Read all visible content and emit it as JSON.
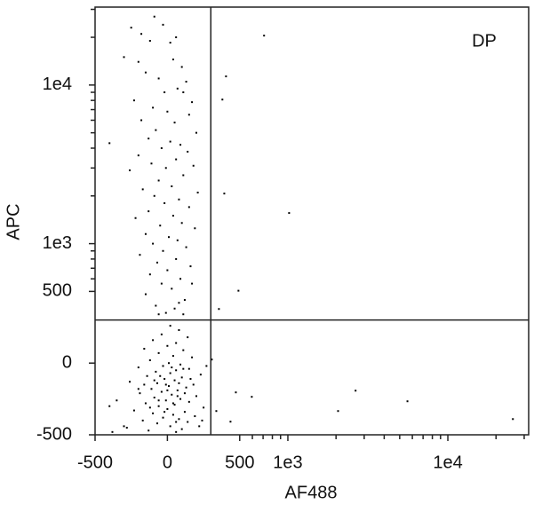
{
  "chart_data": {
    "type": "scatter",
    "x_label": "AF488",
    "y_label": "APC",
    "annotation": "DP",
    "color": "#000000",
    "gates": {
      "x": 300,
      "y": 300
    },
    "xlim": [
      -500,
      32000
    ],
    "ylim": [
      -500,
      31000
    ],
    "xticks": [
      -500,
      0,
      500,
      {
        "value": 1000,
        "label": "1e3"
      },
      {
        "value": 10000,
        "label": "1e4"
      }
    ],
    "yticks": [
      -500,
      0,
      500,
      {
        "value": 1000,
        "label": "1e3"
      },
      {
        "value": 10000,
        "label": "1e4"
      }
    ],
    "xminor_ticks": [
      600,
      700,
      800,
      900,
      2000,
      3000,
      4000,
      5000,
      6000,
      7000,
      8000,
      9000,
      20000,
      30000
    ],
    "yminor_ticks": [
      600,
      700,
      800,
      900,
      2000,
      3000,
      4000,
      5000,
      6000,
      7000,
      8000,
      9000,
      20000,
      30000
    ],
    "x": [
      -90,
      -30,
      -250,
      -180,
      -120,
      20,
      60,
      -300,
      -200,
      40,
      100,
      -150,
      -60,
      130,
      70,
      -20,
      110,
      -230,
      170,
      -100,
      0,
      150,
      -180,
      50,
      -80,
      200,
      -130,
      20,
      90,
      -40,
      -400,
      140,
      -200,
      60,
      -110,
      -10,
      180,
      -260,
      110,
      -60,
      30,
      -170,
      210,
      -90,
      80,
      -20,
      150,
      -130,
      40,
      -220,
      100,
      -50,
      190,
      -150,
      10,
      70,
      -100,
      130,
      -30,
      -190,
      60,
      -70,
      160,
      0,
      -120,
      90,
      -40,
      30,
      -150,
      120,
      -80,
      50,
      -10,
      80,
      170,
      -60,
      110,
      20,
      80,
      -40,
      140,
      -100,
      60,
      0,
      -160,
      110,
      -60,
      40,
      170,
      -120,
      10,
      90,
      -30,
      -200,
      150,
      60,
      -80,
      20,
      230,
      -140,
      100,
      -20,
      50,
      -260,
      -70,
      180,
      10,
      130,
      -110,
      70,
      -40,
      -190,
      30,
      200,
      -90,
      90,
      -10,
      150,
      -150,
      50,
      -60,
      250,
      0,
      -230,
      120,
      -100,
      40,
      190,
      -30,
      80,
      -170,
      140,
      -70,
      20,
      -280,
      100,
      -130,
      -380,
      60,
      -300,
      220,
      -50,
      30,
      -10,
      70,
      -120,
      110,
      -200,
      160,
      -350,
      -400,
      270,
      240,
      -60,
      0,
      40,
      -90,
      120,
      80,
      -20,
      -160,
      60,
      710,
      405,
      380,
      393,
      1018,
      491,
      356,
      307,
      473,
      595,
      2650,
      2060,
      5590,
      25500,
      436,
      338
    ],
    "values": [
      27000,
      24000,
      23000,
      21000,
      19000,
      18500,
      20000,
      15000,
      14000,
      14500,
      13000,
      12000,
      11000,
      10500,
      9500,
      9000,
      9000,
      8000,
      7800,
      7200,
      6800,
      6500,
      6000,
      5800,
      5200,
      5000,
      4600,
      4400,
      4200,
      4000,
      4300,
      3800,
      3600,
      3400,
      3200,
      3000,
      3100,
      2900,
      2700,
      2500,
      2300,
      2200,
      2100,
      2000,
      1900,
      1800,
      1700,
      1600,
      1500,
      1450,
      1350,
      1300,
      1250,
      1150,
      1100,
      1050,
      1000,
      950,
      900,
      850,
      800,
      760,
      720,
      680,
      640,
      600,
      560,
      520,
      480,
      440,
      400,
      380,
      350,
      420,
      560,
      340,
      340,
      260,
      230,
      200,
      180,
      160,
      140,
      120,
      100,
      90,
      70,
      50,
      40,
      20,
      0,
      -10,
      -20,
      -30,
      -40,
      -50,
      -60,
      -70,
      -80,
      -90,
      -100,
      -110,
      -120,
      -130,
      -140,
      -150,
      -160,
      -170,
      -180,
      -190,
      -200,
      -210,
      -220,
      -230,
      -240,
      -250,
      -260,
      -270,
      -280,
      -290,
      -300,
      -310,
      -320,
      -330,
      -340,
      -350,
      -360,
      -370,
      -380,
      -390,
      -400,
      -410,
      -420,
      -440,
      -450,
      -460,
      -470,
      -480,
      -480,
      -440,
      -440,
      -90,
      -30,
      -150,
      -230,
      -310,
      -40,
      -180,
      -110,
      -260,
      -300,
      -20,
      -400,
      -260,
      -190,
      -280,
      -120,
      -210,
      -140,
      -340,
      -150,
      -410,
      20500,
      11340,
      8100,
      2070,
      1560,
      505,
      377,
      25,
      -204,
      -235,
      -192,
      -334,
      -266,
      -390,
      -408,
      -334
    ]
  }
}
